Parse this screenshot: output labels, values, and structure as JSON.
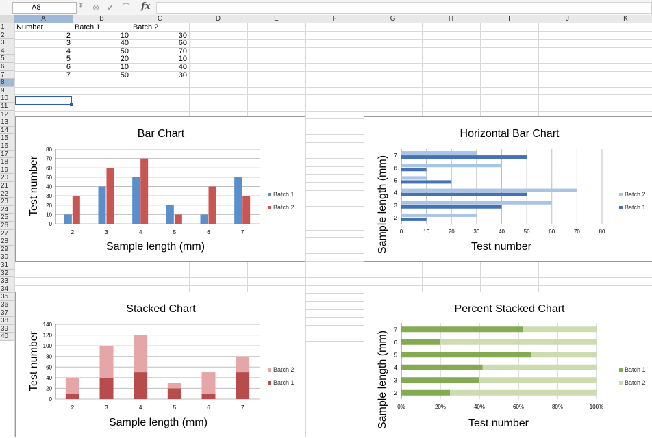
{
  "formula_bar": {
    "name_box": "A8",
    "fx_label": "fx",
    "formula": ""
  },
  "columns": [
    "A",
    "B",
    "C",
    "D",
    "E",
    "F",
    "G",
    "H",
    "I",
    "J",
    "K"
  ],
  "rows": [
    "1",
    "2",
    "3",
    "4",
    "5",
    "6",
    "7",
    "8",
    "9",
    "10",
    "11",
    "12",
    "13",
    "14",
    "15",
    "16",
    "17",
    "18",
    "19",
    "20",
    "21",
    "22",
    "23",
    "24",
    "25",
    "26",
    "27",
    "28",
    "29",
    "30",
    "31",
    "32",
    "33",
    "34",
    "35",
    "36",
    "37",
    "38",
    "39",
    "40"
  ],
  "table": {
    "headers": [
      "Number",
      "Batch 1",
      "Batch 2"
    ],
    "data": [
      [
        2,
        10,
        30
      ],
      [
        3,
        40,
        60
      ],
      [
        4,
        50,
        70
      ],
      [
        5,
        20,
        10
      ],
      [
        6,
        10,
        40
      ],
      [
        7,
        50,
        30
      ]
    ]
  },
  "colors": {
    "batch1_bar": "#5b8fcc",
    "batch2_bar": "#c85754",
    "hbar_batch1": "#4572b4",
    "hbar_batch2": "#a9c4e4",
    "stack_batch1": "#b84c4c",
    "stack_batch2": "#e4a6a6",
    "pct_batch1": "#84aa52",
    "pct_batch2": "#cddbb0",
    "selection": "#2a5fb4"
  },
  "chart_data": [
    {
      "type": "bar",
      "title": "Bar Chart",
      "xlabel": "Sample length (mm)",
      "ylabel": "Test number",
      "categories": [
        "2",
        "3",
        "4",
        "5",
        "6",
        "7"
      ],
      "series": [
        {
          "name": "Batch 1",
          "values": [
            10,
            40,
            50,
            20,
            10,
            50
          ]
        },
        {
          "name": "Batch 2",
          "values": [
            30,
            60,
            70,
            10,
            40,
            30
          ]
        }
      ],
      "ylim": [
        0,
        80
      ],
      "yticks": [
        0,
        10,
        20,
        30,
        40,
        50,
        60,
        70,
        80
      ],
      "legend": "right",
      "grid": true
    },
    {
      "type": "bar",
      "orientation": "horizontal",
      "title": "Horizontal Bar Chart",
      "xlabel": "Test number",
      "ylabel": "Sample length (mm)",
      "categories": [
        "2",
        "3",
        "4",
        "5",
        "6",
        "7"
      ],
      "series": [
        {
          "name": "Batch 1",
          "values": [
            10,
            40,
            50,
            20,
            10,
            50
          ]
        },
        {
          "name": "Batch 2",
          "values": [
            30,
            60,
            70,
            10,
            40,
            30
          ]
        }
      ],
      "xlim": [
        0,
        80
      ],
      "xticks": [
        0,
        10,
        20,
        30,
        40,
        50,
        60,
        70,
        80
      ],
      "legend_order": [
        "Batch 2",
        "Batch 1"
      ],
      "legend": "right",
      "grid": true
    },
    {
      "type": "bar",
      "stacked": true,
      "title": "Stacked Chart",
      "xlabel": "Sample length (mm)",
      "ylabel": "Test number",
      "categories": [
        "2",
        "3",
        "4",
        "5",
        "6",
        "7"
      ],
      "series": [
        {
          "name": "Batch 1",
          "values": [
            10,
            40,
            50,
            20,
            10,
            50
          ]
        },
        {
          "name": "Batch 2",
          "values": [
            30,
            60,
            70,
            10,
            40,
            30
          ]
        }
      ],
      "ylim": [
        0,
        140
      ],
      "yticks": [
        0,
        20,
        40,
        60,
        80,
        100,
        120,
        140
      ],
      "legend_order": [
        "Batch 2",
        "Batch 1"
      ],
      "legend": "right",
      "grid": true
    },
    {
      "type": "bar",
      "orientation": "horizontal",
      "stacked": "percent",
      "title": "Percent Stacked Chart",
      "xlabel": "Test number",
      "ylabel": "Sample length (mm)",
      "categories": [
        "2",
        "3",
        "4",
        "5",
        "6",
        "7"
      ],
      "series": [
        {
          "name": "Batch 1",
          "values": [
            10,
            40,
            50,
            20,
            10,
            50
          ]
        },
        {
          "name": "Batch 2",
          "values": [
            30,
            60,
            70,
            10,
            40,
            30
          ]
        }
      ],
      "xticks": [
        "0%",
        "20%",
        "40%",
        "60%",
        "80%",
        "100%"
      ],
      "legend_order": [
        "Batch 1",
        "Batch 2"
      ],
      "legend": "right",
      "grid": true
    }
  ]
}
